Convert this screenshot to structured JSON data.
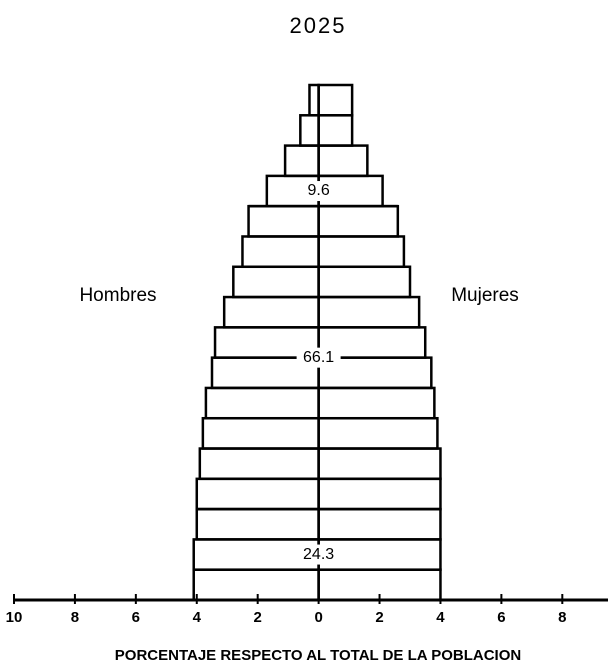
{
  "chart_data": {
    "type": "pyramid",
    "title": "2025",
    "xlabel": "PORCENTAJE RESPECTO AL TOTAL DE LA POBLACION",
    "categories": [
      null,
      null,
      null,
      null,
      null,
      null,
      null,
      null,
      null,
      null,
      null,
      null,
      null,
      null,
      null,
      null,
      null
    ],
    "series": [
      {
        "name": "Hombres",
        "values": [
          4.1,
          4.1,
          4.0,
          4.0,
          3.9,
          3.8,
          3.7,
          3.5,
          3.4,
          3.1,
          2.8,
          2.5,
          2.3,
          1.7,
          1.1,
          0.6,
          0.3
        ]
      },
      {
        "name": "Mujeres",
        "values": [
          4.0,
          4.0,
          4.0,
          4.0,
          4.0,
          3.9,
          3.8,
          3.7,
          3.5,
          3.3,
          3.0,
          2.8,
          2.6,
          2.1,
          1.6,
          1.1,
          1.1
        ]
      }
    ],
    "annotations": [
      {
        "text": "24.3"
      },
      {
        "text": "66.1"
      },
      {
        "text": "9.6"
      }
    ],
    "xlim": [
      -10,
      9.5
    ],
    "xticks": [
      {
        "value": -10,
        "label": "10"
      },
      {
        "value": -8,
        "label": "8"
      },
      {
        "value": -6,
        "label": "6"
      },
      {
        "value": -4,
        "label": "4"
      },
      {
        "value": -2,
        "label": "2"
      },
      0,
      2,
      4,
      6,
      8
    ]
  }
}
